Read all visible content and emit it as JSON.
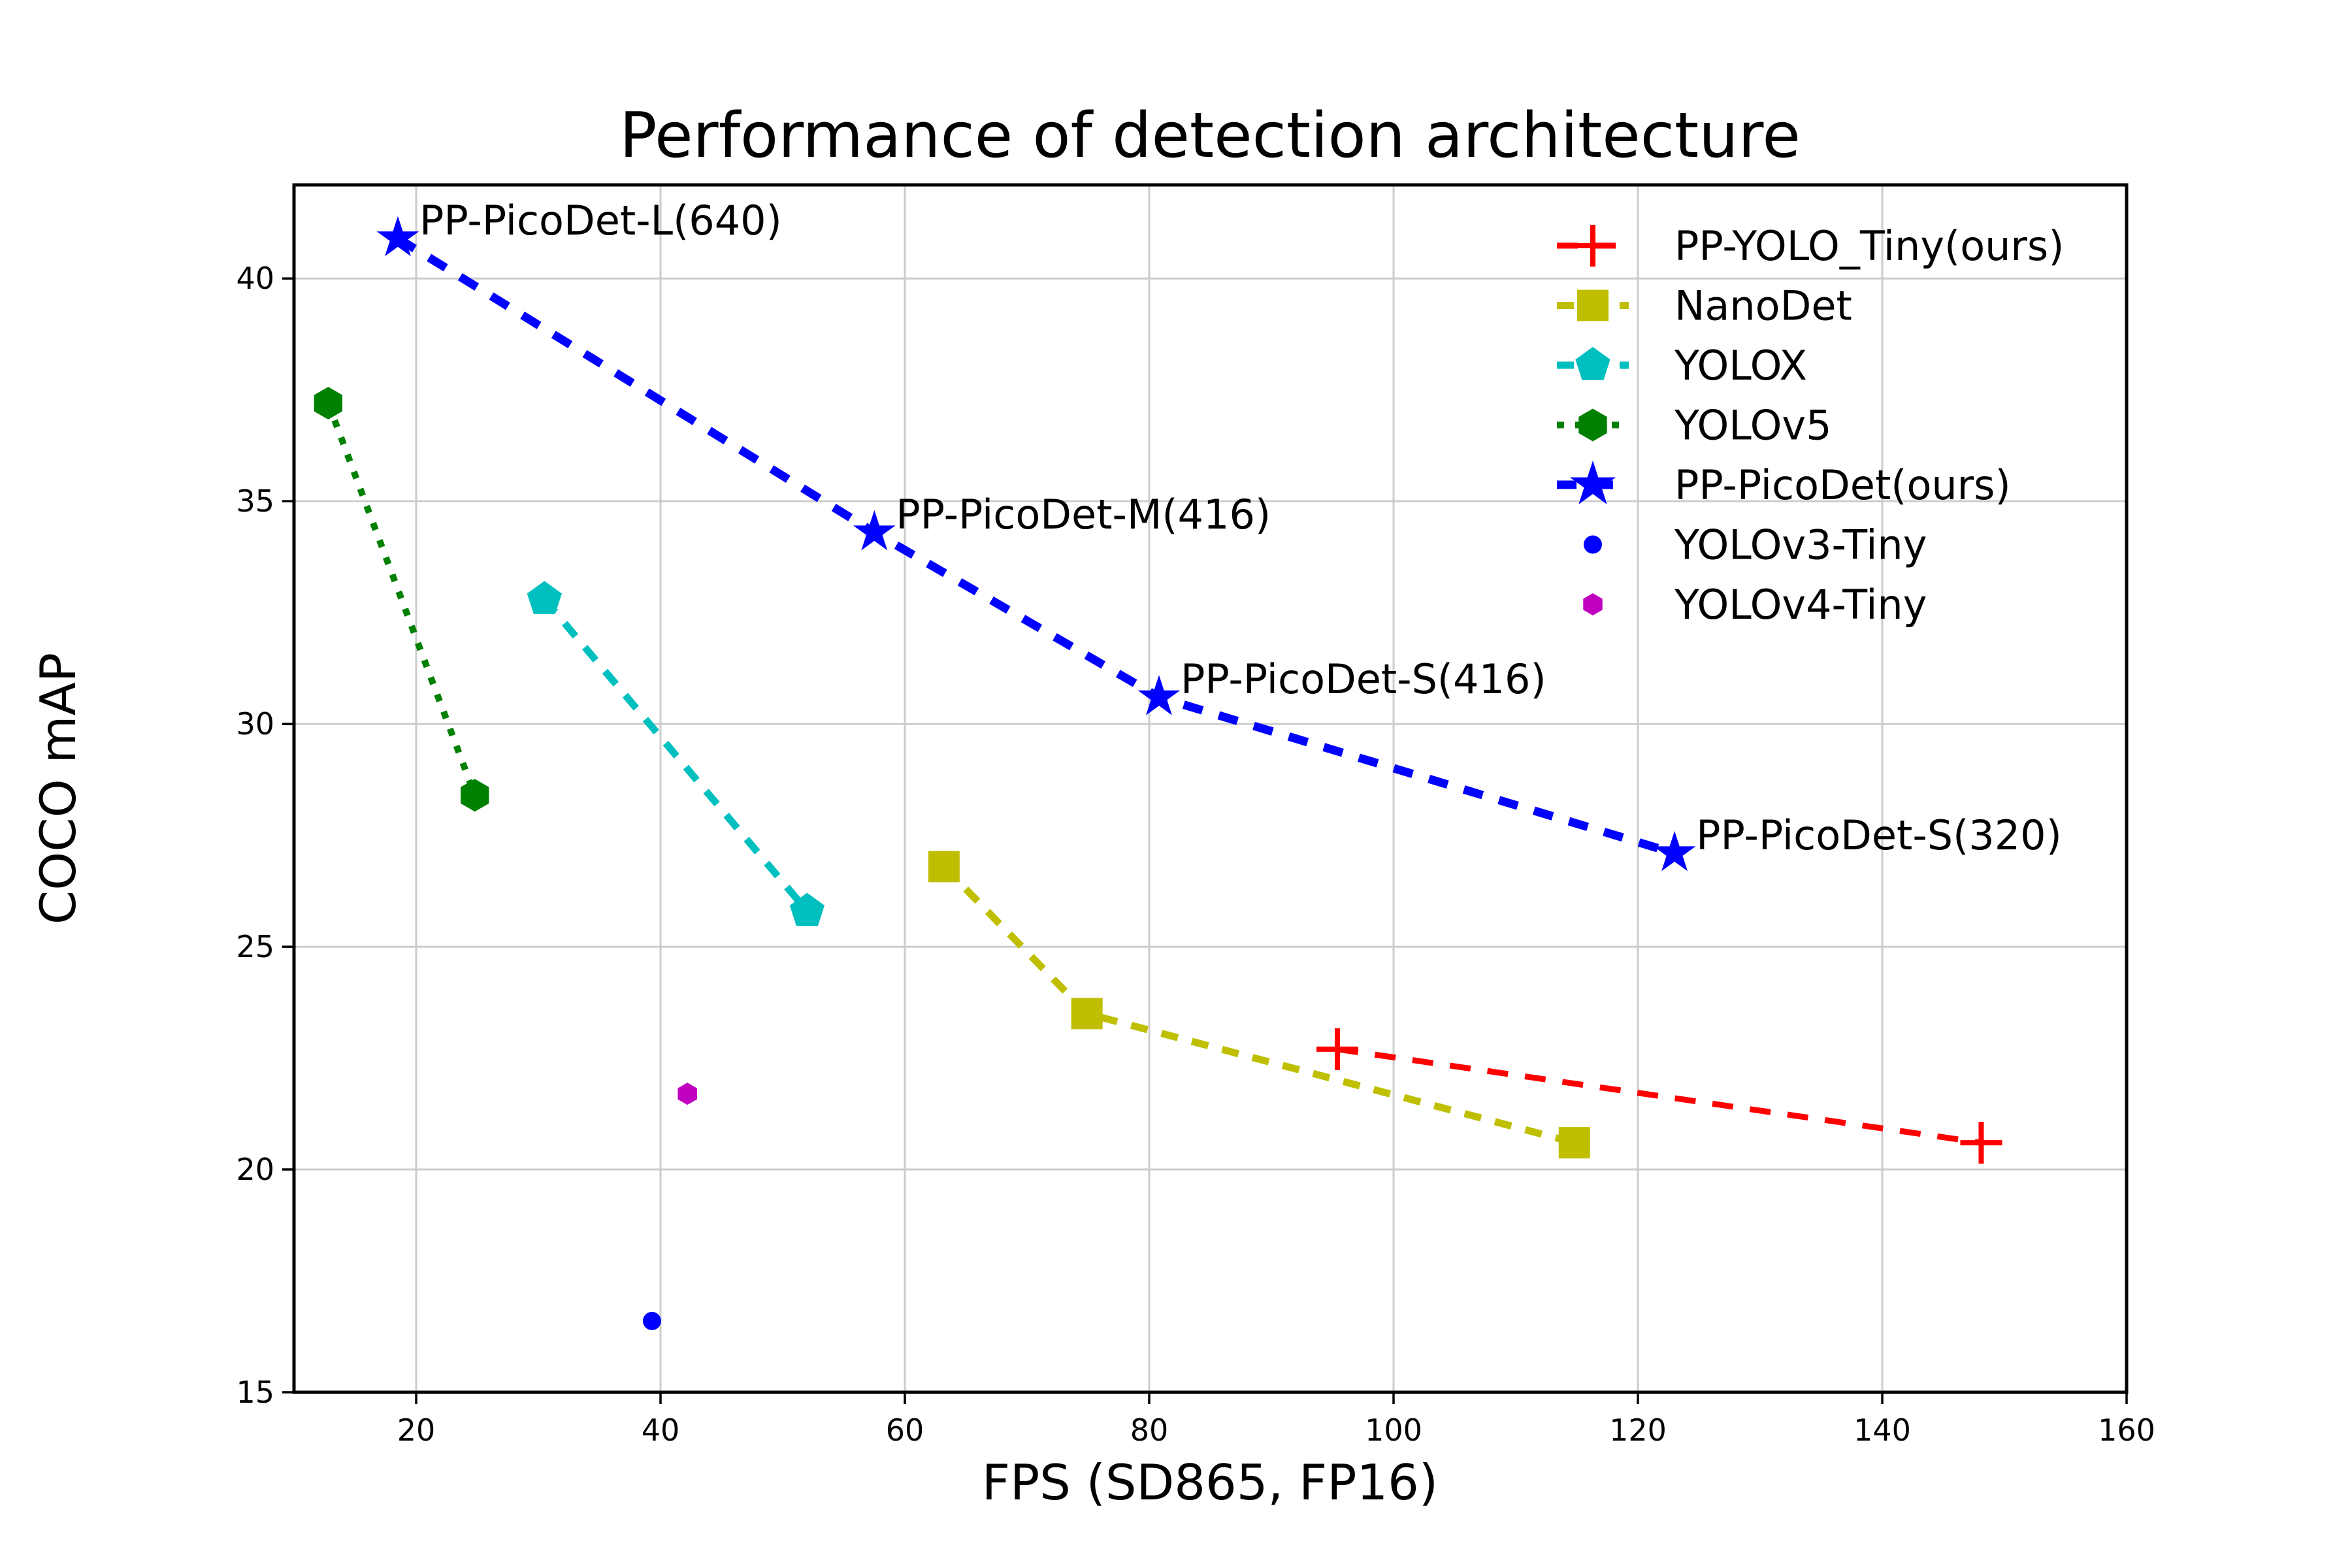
{
  "title": "Performance of detection architecture",
  "xlabel": "FPS (SD865, FP16)",
  "ylabel": "COCO mAP",
  "colors": {
    "background": "#ffffff",
    "grid": "#cccccc",
    "spine": "#000000",
    "text": "#000000",
    "annotation": "#0000ff"
  },
  "chart_data": {
    "type": "line",
    "xlabel": "FPS (SD865, FP16)",
    "ylabel": "COCO mAP",
    "xlim": [
      10,
      160
    ],
    "ylim": [
      15,
      42.1
    ],
    "x_ticks": [
      20,
      40,
      60,
      80,
      100,
      120,
      140,
      160
    ],
    "y_ticks": [
      15,
      20,
      25,
      30,
      35,
      40
    ],
    "grid": true,
    "legend_position": "upper right",
    "legend_frame": false,
    "series": [
      {
        "name": "PP-YOLO_Tiny(ours)",
        "color": "#ff0000",
        "marker": "plus",
        "marker_size": 32,
        "line": "dashed",
        "linewidth": 9,
        "dash": [
          32,
          26
        ],
        "points": [
          [
            95.4,
            22.7
          ],
          [
            148.1,
            20.6
          ]
        ]
      },
      {
        "name": "NanoDet",
        "color": "#bfbf00",
        "marker": "square",
        "marker_size": 24,
        "line": "dashed",
        "linewidth": 11,
        "dash": [
          26,
          22
        ],
        "points": [
          [
            63.2,
            26.8
          ],
          [
            74.9,
            23.5
          ],
          [
            114.8,
            20.6
          ]
        ]
      },
      {
        "name": "YOLOX",
        "color": "#00bfbf",
        "marker": "pentagon",
        "marker_size": 28,
        "line": "dashed",
        "linewidth": 11,
        "dash": [
          26,
          22
        ],
        "points": [
          [
            30.5,
            32.8
          ],
          [
            52.0,
            25.8
          ]
        ]
      },
      {
        "name": "YOLOv5",
        "color": "#008000",
        "marker": "hexagon",
        "marker_size": 25,
        "line": "dotted",
        "linewidth": 10,
        "dash": [
          11,
          17
        ],
        "points": [
          [
            12.8,
            37.2
          ],
          [
            24.8,
            28.4
          ]
        ]
      },
      {
        "name": "PP-PicoDet(ours)",
        "color": "#0000ff",
        "marker": "star",
        "marker_size": 34,
        "line": "dashed",
        "linewidth": 13,
        "dash": [
          30,
          26
        ],
        "points": [
          [
            18.5,
            40.9
          ],
          [
            57.5,
            34.3
          ],
          [
            80.8,
            30.6
          ],
          [
            123.0,
            27.1
          ]
        ]
      },
      {
        "name": "YOLOv3-Tiny",
        "color": "#0000ff",
        "marker": "circle",
        "marker_size": 14,
        "line": "none",
        "linewidth": 0,
        "dash": [],
        "points": [
          [
            39.3,
            16.6
          ]
        ]
      },
      {
        "name": "YOLOv4-Tiny",
        "color": "#bf00bf",
        "marker": "hexagon",
        "marker_size": 17,
        "line": "none",
        "linewidth": 0,
        "dash": [],
        "points": [
          [
            42.2,
            21.7
          ]
        ]
      }
    ],
    "annotations": [
      {
        "text": "PP-PicoDet-L(640)",
        "x": 18.5,
        "y": 40.9
      },
      {
        "text": "PP-PicoDet-M(416)",
        "x": 57.5,
        "y": 34.3
      },
      {
        "text": "PP-PicoDet-S(416)",
        "x": 80.8,
        "y": 30.6
      },
      {
        "text": "PP-PicoDet-S(320)",
        "x": 123.0,
        "y": 27.1
      }
    ]
  }
}
